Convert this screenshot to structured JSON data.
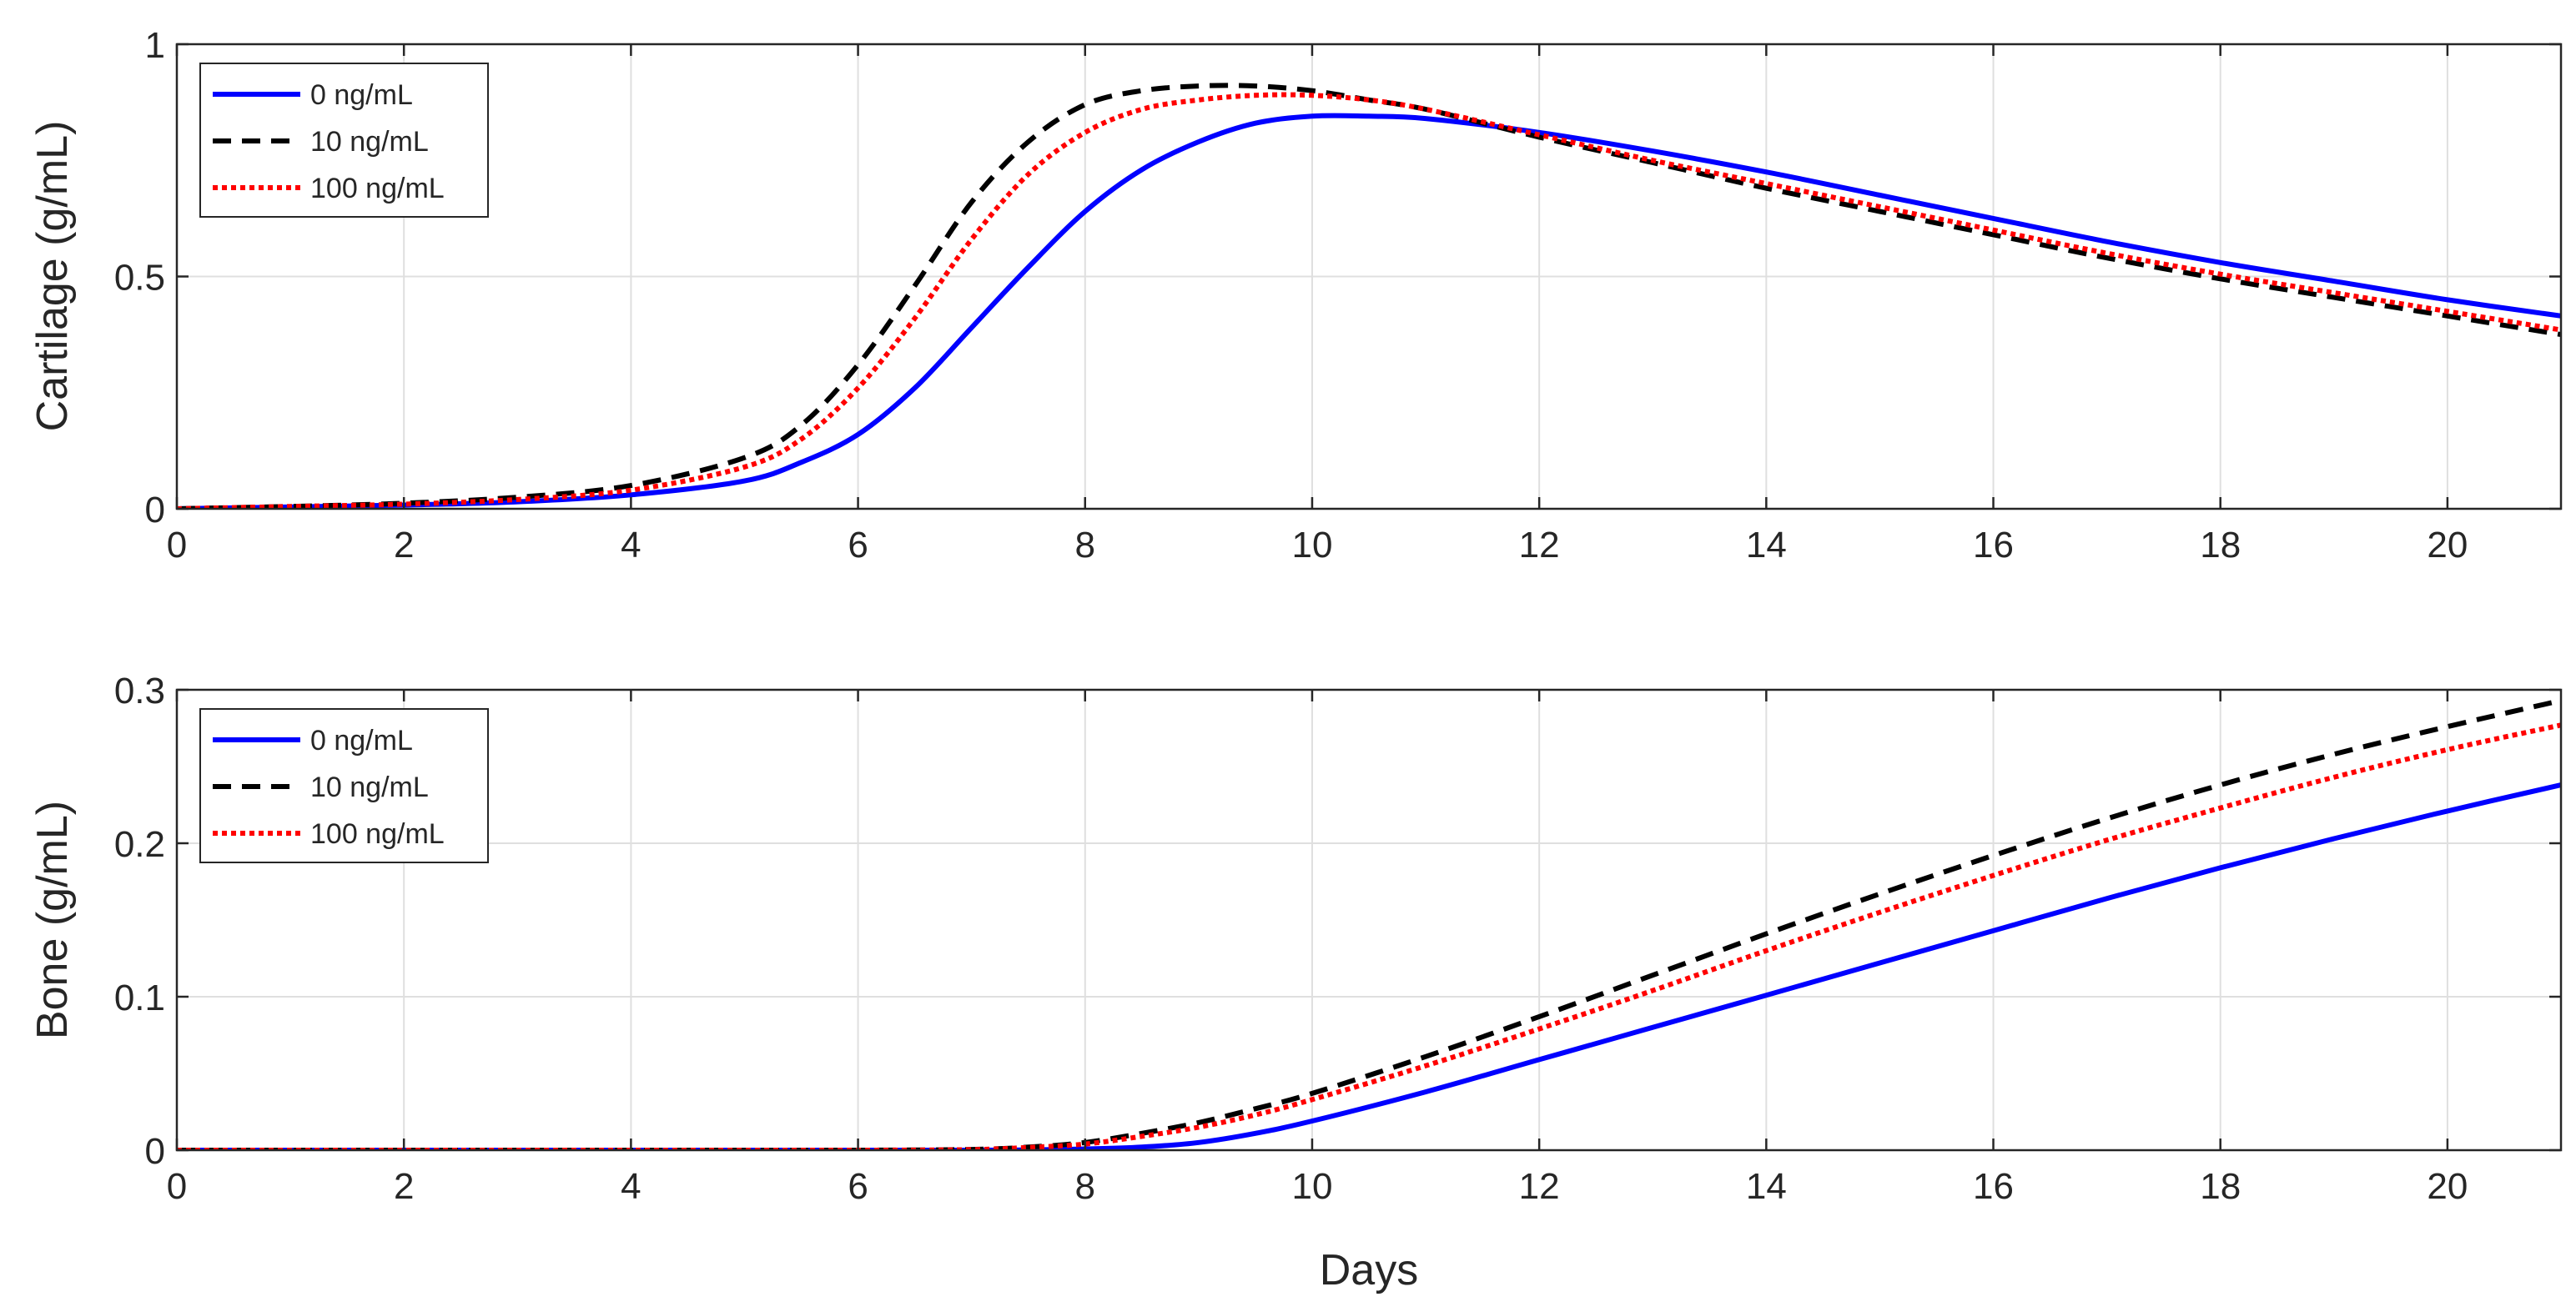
{
  "chart_data": [
    {
      "type": "line",
      "title": "",
      "xlabel": "",
      "ylabel": "Cartilage (g/mL)",
      "xlim": [
        0,
        21
      ],
      "ylim": [
        0,
        1
      ],
      "xticks": [
        0,
        2,
        4,
        6,
        8,
        10,
        12,
        14,
        16,
        18,
        20
      ],
      "xtick_labels": [
        "0",
        "2",
        "4",
        "6",
        "8",
        "10",
        "12",
        "14",
        "16",
        "18",
        "20"
      ],
      "yticks": [
        0,
        0.5,
        1
      ],
      "ytick_labels": [
        "0",
        "0.5",
        "1"
      ],
      "grid": true,
      "legend_position": "top-left",
      "x": [
        0,
        1,
        2,
        3,
        4,
        5,
        5.5,
        6,
        6.5,
        7,
        7.5,
        8,
        8.5,
        9,
        9.5,
        10,
        10.5,
        11,
        12,
        13,
        14,
        15,
        16,
        17,
        18,
        19,
        20,
        21
      ],
      "series": [
        {
          "name": "0 ng/mL",
          "color": "#0000ff",
          "style": "solid",
          "values": [
            0,
            0.004,
            0.008,
            0.015,
            0.03,
            0.06,
            0.1,
            0.16,
            0.26,
            0.39,
            0.52,
            0.64,
            0.73,
            0.79,
            0.83,
            0.845,
            0.845,
            0.84,
            0.81,
            0.77,
            0.725,
            0.675,
            0.625,
            0.575,
            0.53,
            0.49,
            0.45,
            0.415
          ]
        },
        {
          "name": "10 ng/mL",
          "color": "#000000",
          "style": "dashed",
          "values": [
            0,
            0.005,
            0.012,
            0.025,
            0.05,
            0.11,
            0.18,
            0.31,
            0.48,
            0.66,
            0.79,
            0.87,
            0.9,
            0.91,
            0.91,
            0.9,
            0.88,
            0.86,
            0.8,
            0.745,
            0.69,
            0.64,
            0.59,
            0.54,
            0.495,
            0.455,
            0.415,
            0.375
          ]
        },
        {
          "name": "100 ng/mL",
          "color": "#ff0000",
          "style": "dotted",
          "values": [
            0,
            0.005,
            0.01,
            0.02,
            0.04,
            0.09,
            0.15,
            0.26,
            0.41,
            0.58,
            0.72,
            0.81,
            0.86,
            0.88,
            0.89,
            0.89,
            0.88,
            0.86,
            0.805,
            0.75,
            0.7,
            0.65,
            0.6,
            0.55,
            0.505,
            0.465,
            0.425,
            0.385
          ]
        }
      ]
    },
    {
      "type": "line",
      "title": "",
      "xlabel": "Days",
      "ylabel": "Bone (g/mL)",
      "xlim": [
        0,
        21
      ],
      "ylim": [
        0,
        0.3
      ],
      "xticks": [
        0,
        2,
        4,
        6,
        8,
        10,
        12,
        14,
        16,
        18,
        20
      ],
      "xtick_labels": [
        "0",
        "2",
        "4",
        "6",
        "8",
        "10",
        "12",
        "14",
        "16",
        "18",
        "20"
      ],
      "yticks": [
        0,
        0.1,
        0.2,
        0.3
      ],
      "ytick_labels": [
        "0",
        "0.1",
        "0.2",
        "0.3"
      ],
      "grid": true,
      "legend_position": "top-left",
      "x": [
        0,
        2,
        4,
        6,
        7,
        7.5,
        8,
        8.5,
        9,
        9.5,
        10,
        11,
        12,
        13,
        14,
        15,
        16,
        17,
        18,
        19,
        20,
        21
      ],
      "series": [
        {
          "name": "0 ng/mL",
          "color": "#0000ff",
          "style": "solid",
          "values": [
            0,
            0,
            0,
            0,
            0,
            0.0002,
            0.0008,
            0.002,
            0.005,
            0.011,
            0.019,
            0.038,
            0.059,
            0.08,
            0.101,
            0.122,
            0.143,
            0.164,
            0.184,
            0.203,
            0.221,
            0.238
          ]
        },
        {
          "name": "10 ng/mL",
          "color": "#000000",
          "style": "dashed",
          "values": [
            0,
            0,
            0,
            0,
            0.0005,
            0.002,
            0.005,
            0.011,
            0.018,
            0.027,
            0.037,
            0.061,
            0.087,
            0.114,
            0.141,
            0.167,
            0.192,
            0.216,
            0.238,
            0.258,
            0.276,
            0.293
          ]
        },
        {
          "name": "100 ng/mL",
          "color": "#ff0000",
          "style": "dotted",
          "values": [
            0,
            0,
            0,
            0,
            0.0004,
            0.0018,
            0.004,
            0.009,
            0.015,
            0.023,
            0.033,
            0.055,
            0.079,
            0.104,
            0.13,
            0.155,
            0.179,
            0.202,
            0.223,
            0.243,
            0.261,
            0.277
          ]
        }
      ]
    }
  ]
}
